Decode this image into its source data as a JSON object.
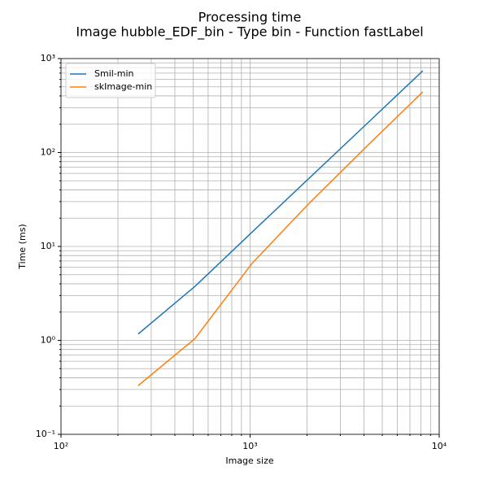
{
  "chart_data": {
    "type": "line",
    "title": "Processing time",
    "subtitle": "Image hubble_EDF_bin - Type bin - Function fastLabel",
    "xlabel": "Image size",
    "ylabel": "Time (ms)",
    "x": [
      256,
      512,
      1024,
      2048,
      4096,
      8192
    ],
    "series": [
      {
        "name": "Smil-min",
        "color": "#1f77b4",
        "values": [
          1.17,
          3.77,
          14.2,
          53,
          198,
          741
        ]
      },
      {
        "name": "skImage-min",
        "color": "#ff7f0e",
        "values": [
          0.33,
          1.05,
          6.6,
          28.7,
          114,
          442
        ]
      }
    ],
    "xscale": "log",
    "yscale": "log",
    "xlim": [
      100,
      10000
    ],
    "ylim": [
      0.1,
      1000
    ],
    "xticks": [
      {
        "value": 100,
        "label": "10²"
      },
      {
        "value": 1000,
        "label": "10³"
      },
      {
        "value": 10000,
        "label": "10⁴"
      }
    ],
    "yticks": [
      {
        "value": 0.1,
        "label": "10⁻¹"
      },
      {
        "value": 1,
        "label": "10⁰"
      },
      {
        "value": 10,
        "label": "10¹"
      },
      {
        "value": 100,
        "label": "10²"
      },
      {
        "value": 1000,
        "label": "10³"
      }
    ],
    "xminorticks": [
      200,
      300,
      400,
      500,
      600,
      700,
      800,
      900,
      2000,
      3000,
      4000,
      5000,
      6000,
      7000,
      8000,
      9000
    ],
    "yminorticks": [
      0.2,
      0.3,
      0.4,
      0.5,
      0.6,
      0.7,
      0.8,
      0.9,
      2,
      3,
      4,
      5,
      6,
      7,
      8,
      9,
      20,
      30,
      40,
      50,
      60,
      70,
      80,
      90,
      200,
      300,
      400,
      500,
      600,
      700,
      800,
      900
    ],
    "grid": true,
    "legend": "upper left"
  }
}
